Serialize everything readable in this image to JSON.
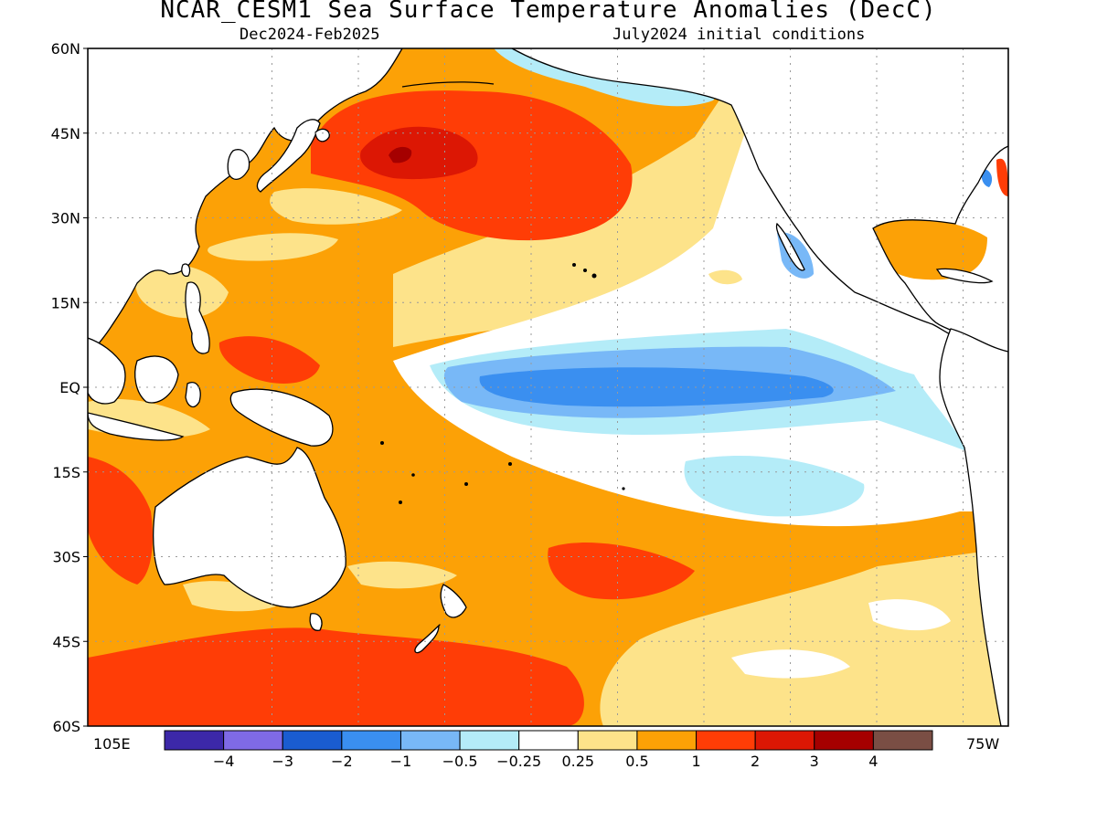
{
  "title": "NCAR_CESM1 Sea Surface Temperature Anomalies (DecC)",
  "subtitle_left": "Dec2024-Feb2025",
  "subtitle_right": "July2024 initial conditions",
  "lat_labels": [
    "60N",
    "45N",
    "30N",
    "15N",
    "EQ",
    "15S",
    "30S",
    "45S",
    "60S"
  ],
  "lon_labels": {
    "left": "105E",
    "right": "75W"
  },
  "colorbar": {
    "colors": [
      "#3c28a8",
      "#7f6ae6",
      "#1a5cd0",
      "#3a8ff0",
      "#78b8f7",
      "#b4ecf8",
      "#ffffff",
      "#fde38a",
      "#fca106",
      "#ff3d06",
      "#dc1704",
      "#a50000",
      "#7a4e44"
    ],
    "labels": [
      "-4",
      "-3",
      "-2",
      "-1",
      "-0.5",
      "-0.25",
      "0.25",
      "0.5",
      "1",
      "2",
      "3",
      "4"
    ]
  },
  "map_colors": {
    "land": "#ffffff",
    "coast": "#000000",
    "grid": "#9a9a9a"
  }
}
